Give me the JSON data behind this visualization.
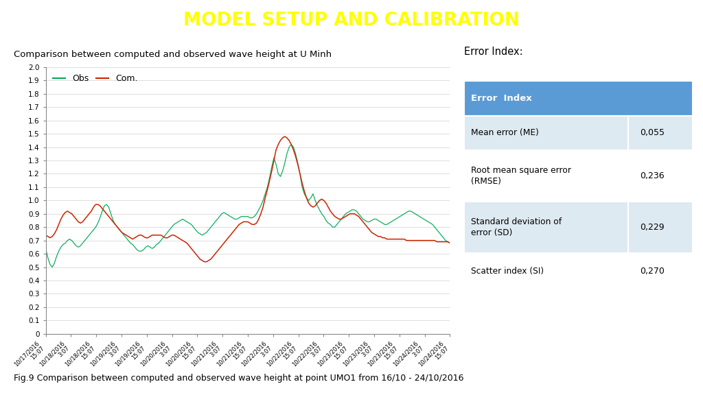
{
  "title": "MODEL SETUP AND CALIBRATION",
  "title_bg_color": "#5B7FBF",
  "title_text_color": "#FFFF00",
  "subtitle": "Comparison between computed and observed wave height at U Minh",
  "caption": "Fig.9 Comparison between computed and observed wave height at point UMO1 from 16/10 - 24/10/2016",
  "ylim": [
    0,
    2.0
  ],
  "yticks": [
    0,
    0.1,
    0.2,
    0.3,
    0.4,
    0.5,
    0.6,
    0.7,
    0.8,
    0.9,
    1.0,
    1.1,
    1.2,
    1.3,
    1.4,
    1.5,
    1.6,
    1.7,
    1.8,
    1.9,
    2.0
  ],
  "obs_color": "#00AA55",
  "com_color": "#CC2200",
  "legend_obs": "Obs",
  "legend_com": "Com.",
  "xtick_labels": [
    "10/17/2016\n15:07",
    "10/18/2016\n3:07",
    "10/18/2016\n15:07",
    "10/19/2016\n3:07",
    "10/19/2016\n15:07",
    "10/20/2016\n3:07",
    "10/20/2016\n15:07",
    "10/21/2016\n3:07",
    "10/21/2016\n15:07",
    "10/22/2016\n3:07",
    "10/22/2016\n15:07",
    "10/22/2016\n3:07",
    "10/23/2016\n15:07",
    "10/23/2016\n3:07",
    "10/23/2016\n15:07",
    "10/24/2016\n3:07",
    "10/24/2016\n15:07"
  ],
  "error_index_title": "Error Index:",
  "table_header_bg": "#5B9BD5",
  "table_row_bgs": [
    "#DEEAF1",
    "#FFFFFF",
    "#DEEAF1",
    "#FFFFFF"
  ],
  "table_rows": [
    [
      "Mean error (ME)",
      "0,055"
    ],
    [
      "Root mean square error\n(RMSE)",
      "0,236"
    ],
    [
      "Standard deviation of\nerror (SD)",
      "0,229"
    ],
    [
      "Scatter index (SI)",
      "0,270"
    ]
  ],
  "obs_data": [
    0.64,
    0.57,
    0.52,
    0.5,
    0.53,
    0.58,
    0.62,
    0.65,
    0.67,
    0.68,
    0.7,
    0.71,
    0.7,
    0.68,
    0.66,
    0.65,
    0.66,
    0.68,
    0.7,
    0.72,
    0.74,
    0.76,
    0.78,
    0.8,
    0.83,
    0.87,
    0.92,
    0.96,
    0.97,
    0.95,
    0.9,
    0.85,
    0.82,
    0.8,
    0.78,
    0.76,
    0.74,
    0.72,
    0.7,
    0.68,
    0.67,
    0.65,
    0.63,
    0.62,
    0.62,
    0.63,
    0.65,
    0.66,
    0.65,
    0.64,
    0.65,
    0.67,
    0.68,
    0.7,
    0.72,
    0.74,
    0.76,
    0.78,
    0.8,
    0.82,
    0.83,
    0.84,
    0.85,
    0.86,
    0.85,
    0.84,
    0.83,
    0.82,
    0.8,
    0.78,
    0.76,
    0.75,
    0.74,
    0.75,
    0.76,
    0.78,
    0.8,
    0.82,
    0.84,
    0.86,
    0.88,
    0.9,
    0.91,
    0.9,
    0.89,
    0.88,
    0.87,
    0.86,
    0.86,
    0.87,
    0.88,
    0.88,
    0.88,
    0.88,
    0.87,
    0.87,
    0.88,
    0.9,
    0.93,
    0.96,
    1.0,
    1.05,
    1.1,
    1.17,
    1.25,
    1.32,
    1.27,
    1.2,
    1.18,
    1.22,
    1.28,
    1.35,
    1.4,
    1.42,
    1.4,
    1.35,
    1.28,
    1.2,
    1.1,
    1.05,
    1.02,
    1.0,
    1.02,
    1.05,
    1.0,
    0.96,
    0.93,
    0.9,
    0.88,
    0.85,
    0.83,
    0.82,
    0.8,
    0.8,
    0.82,
    0.84,
    0.86,
    0.88,
    0.9,
    0.91,
    0.92,
    0.93,
    0.93,
    0.92,
    0.9,
    0.88,
    0.86,
    0.85,
    0.84,
    0.84,
    0.85,
    0.86,
    0.86,
    0.85,
    0.84,
    0.83,
    0.82,
    0.82,
    0.83,
    0.84,
    0.85,
    0.86,
    0.87,
    0.88,
    0.89,
    0.9,
    0.91,
    0.92,
    0.92,
    0.91,
    0.9,
    0.89,
    0.88,
    0.87,
    0.86,
    0.85,
    0.84,
    0.83,
    0.82,
    0.8,
    0.78,
    0.76,
    0.74,
    0.72,
    0.7,
    0.69,
    0.68
  ],
  "com_data": [
    0.74,
    0.73,
    0.72,
    0.73,
    0.75,
    0.78,
    0.82,
    0.86,
    0.89,
    0.91,
    0.92,
    0.91,
    0.9,
    0.88,
    0.86,
    0.84,
    0.83,
    0.84,
    0.86,
    0.88,
    0.9,
    0.92,
    0.95,
    0.97,
    0.97,
    0.96,
    0.94,
    0.92,
    0.9,
    0.88,
    0.86,
    0.84,
    0.82,
    0.8,
    0.78,
    0.76,
    0.75,
    0.74,
    0.73,
    0.72,
    0.71,
    0.72,
    0.73,
    0.74,
    0.74,
    0.73,
    0.72,
    0.72,
    0.73,
    0.74,
    0.74,
    0.74,
    0.74,
    0.74,
    0.73,
    0.72,
    0.72,
    0.73,
    0.74,
    0.74,
    0.73,
    0.72,
    0.71,
    0.7,
    0.69,
    0.68,
    0.66,
    0.64,
    0.62,
    0.6,
    0.58,
    0.56,
    0.55,
    0.54,
    0.54,
    0.55,
    0.56,
    0.58,
    0.6,
    0.62,
    0.64,
    0.66,
    0.68,
    0.7,
    0.72,
    0.74,
    0.76,
    0.78,
    0.8,
    0.82,
    0.83,
    0.84,
    0.84,
    0.84,
    0.83,
    0.82,
    0.82,
    0.83,
    0.86,
    0.9,
    0.95,
    1.02,
    1.08,
    1.15,
    1.22,
    1.3,
    1.38,
    1.42,
    1.45,
    1.47,
    1.48,
    1.47,
    1.45,
    1.42,
    1.38,
    1.33,
    1.27,
    1.2,
    1.13,
    1.07,
    1.02,
    0.98,
    0.96,
    0.95,
    0.96,
    0.98,
    1.0,
    1.01,
    1.0,
    0.98,
    0.95,
    0.92,
    0.9,
    0.88,
    0.87,
    0.86,
    0.86,
    0.87,
    0.88,
    0.89,
    0.9,
    0.9,
    0.9,
    0.89,
    0.88,
    0.86,
    0.84,
    0.82,
    0.8,
    0.78,
    0.76,
    0.75,
    0.74,
    0.73,
    0.73,
    0.72,
    0.72,
    0.71,
    0.71,
    0.71,
    0.71,
    0.71,
    0.71,
    0.71,
    0.71,
    0.71,
    0.7,
    0.7,
    0.7,
    0.7,
    0.7,
    0.7,
    0.7,
    0.7,
    0.7,
    0.7,
    0.7,
    0.7,
    0.7,
    0.7,
    0.69,
    0.69,
    0.69,
    0.69,
    0.69,
    0.69,
    0.68
  ]
}
